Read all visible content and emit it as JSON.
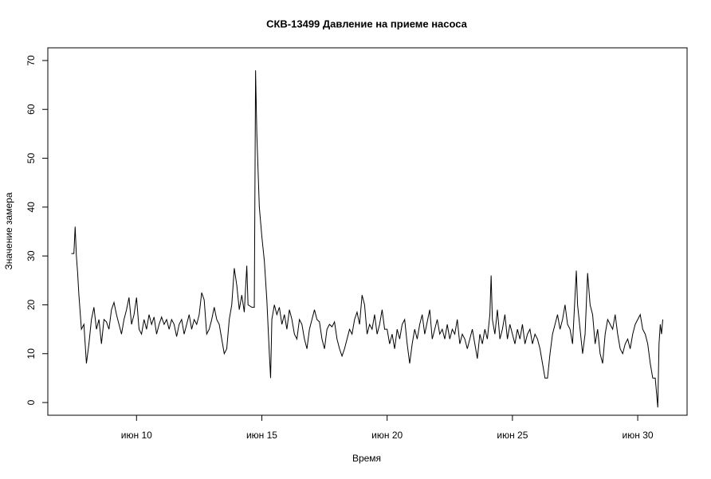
{
  "chart_data": {
    "type": "line",
    "title": "СКВ-13499 Давление на приеме насоса",
    "xlabel": "Время",
    "ylabel": "Значение замера",
    "color": "#000000",
    "xlim": [
      6.46,
      31.97
    ],
    "ylim": [
      -2.6,
      72.6
    ],
    "xticks": [
      {
        "value": 10,
        "label": "июн 10"
      },
      {
        "value": 15,
        "label": "июн 15"
      },
      {
        "value": 20,
        "label": "июн 20"
      },
      {
        "value": 25,
        "label": "июн 25"
      },
      {
        "value": 30,
        "label": "июн 30"
      }
    ],
    "yticks": [
      0,
      10,
      20,
      30,
      40,
      50,
      60,
      70
    ],
    "x": [
      7.4,
      7.5,
      7.55,
      7.6,
      7.65,
      7.7,
      7.8,
      7.9,
      8.0,
      8.1,
      8.2,
      8.3,
      8.4,
      8.5,
      8.6,
      8.7,
      8.8,
      8.9,
      9.0,
      9.1,
      9.2,
      9.3,
      9.4,
      9.5,
      9.6,
      9.7,
      9.8,
      9.9,
      10.0,
      10.1,
      10.2,
      10.3,
      10.4,
      10.5,
      10.6,
      10.7,
      10.8,
      10.9,
      11.0,
      11.1,
      11.2,
      11.3,
      11.4,
      11.5,
      11.6,
      11.7,
      11.8,
      11.9,
      12.0,
      12.1,
      12.2,
      12.3,
      12.4,
      12.5,
      12.6,
      12.7,
      12.8,
      12.9,
      13.0,
      13.1,
      13.2,
      13.3,
      13.4,
      13.5,
      13.6,
      13.7,
      13.8,
      13.9,
      14.0,
      14.1,
      14.2,
      14.3,
      14.4,
      14.45,
      14.6,
      14.7,
      14.75,
      14.8,
      14.9,
      15.0,
      15.1,
      15.2,
      15.3,
      15.35,
      15.4,
      15.5,
      15.6,
      15.7,
      15.8,
      15.9,
      16.0,
      16.1,
      16.2,
      16.3,
      16.4,
      16.5,
      16.6,
      16.7,
      16.8,
      16.9,
      17.0,
      17.1,
      17.2,
      17.3,
      17.4,
      17.5,
      17.6,
      17.7,
      17.8,
      17.9,
      18.0,
      18.1,
      18.2,
      18.3,
      18.4,
      18.5,
      18.6,
      18.7,
      18.8,
      18.9,
      19.0,
      19.1,
      19.2,
      19.3,
      19.4,
      19.5,
      19.6,
      19.7,
      19.8,
      19.9,
      20.0,
      20.1,
      20.2,
      20.3,
      20.4,
      20.5,
      20.6,
      20.7,
      20.8,
      20.9,
      21.0,
      21.1,
      21.2,
      21.3,
      21.4,
      21.5,
      21.6,
      21.7,
      21.8,
      21.9,
      22.0,
      22.1,
      22.2,
      22.3,
      22.4,
      22.5,
      22.6,
      22.7,
      22.8,
      22.9,
      23.0,
      23.1,
      23.2,
      23.3,
      23.4,
      23.5,
      23.6,
      23.7,
      23.8,
      23.9,
      24.0,
      24.1,
      24.15,
      24.2,
      24.3,
      24.4,
      24.5,
      24.6,
      24.7,
      24.8,
      24.9,
      25.0,
      25.1,
      25.2,
      25.3,
      25.4,
      25.5,
      25.6,
      25.7,
      25.8,
      25.9,
      26.0,
      26.1,
      26.2,
      26.3,
      26.4,
      26.5,
      26.6,
      26.7,
      26.8,
      26.9,
      27.0,
      27.1,
      27.2,
      27.3,
      27.4,
      27.5,
      27.55,
      27.6,
      27.7,
      27.8,
      27.9,
      28.0,
      28.1,
      28.2,
      28.3,
      28.4,
      28.5,
      28.6,
      28.7,
      28.8,
      28.9,
      29.0,
      29.1,
      29.2,
      29.3,
      29.4,
      29.5,
      29.6,
      29.7,
      29.8,
      29.9,
      30.0,
      30.1,
      30.2,
      30.3,
      30.4,
      30.5,
      30.6,
      30.7,
      30.8,
      30.85,
      30.9,
      30.95,
      31.0
    ],
    "values": [
      30.5,
      30.5,
      36,
      30,
      26.5,
      22,
      15,
      16,
      8,
      12,
      17,
      19.5,
      15,
      17,
      12,
      17,
      16.5,
      15,
      19,
      20.5,
      18,
      16,
      14,
      17,
      19,
      21.5,
      16,
      18,
      21.5,
      15,
      14,
      17,
      15,
      18,
      16,
      17.5,
      14,
      16,
      17.5,
      16,
      17,
      15,
      17,
      16,
      13.5,
      16,
      17,
      14,
      16,
      18,
      15,
      17,
      16,
      18,
      22.5,
      21,
      14,
      15,
      17,
      19.5,
      17,
      16,
      13,
      10,
      11,
      17,
      20,
      27.5,
      24,
      19,
      22,
      18.5,
      28,
      20,
      19.5,
      19.5,
      68,
      55,
      40,
      34,
      29,
      21,
      10,
      5,
      17,
      20,
      18,
      19.5,
      16,
      18,
      15,
      19,
      17,
      14,
      13,
      17,
      16,
      13,
      11,
      15,
      17,
      19,
      17,
      16.5,
      13,
      11,
      15,
      16,
      15.5,
      16.5,
      13,
      11,
      9.5,
      11,
      13,
      15,
      14,
      17,
      18.5,
      16,
      22,
      20,
      14,
      16,
      15,
      18,
      14,
      16,
      19,
      15,
      15,
      12,
      14,
      11,
      15,
      13,
      16,
      17,
      12,
      8,
      12,
      15,
      13,
      16,
      18,
      14,
      16.5,
      19,
      13,
      15,
      17,
      14,
      15,
      13,
      16,
      13,
      15,
      14,
      17,
      12,
      14,
      13,
      11,
      13,
      15,
      12,
      9,
      14,
      12,
      15,
      13,
      18,
      26,
      17,
      14,
      19,
      13,
      15,
      18,
      13,
      16,
      14,
      12,
      15,
      13,
      16,
      12,
      14,
      15,
      12,
      14,
      13,
      11,
      8,
      5,
      5,
      10,
      14,
      16,
      18,
      15,
      17,
      20,
      16,
      15,
      12,
      22,
      27,
      20,
      15,
      10,
      14,
      26.5,
      20,
      18,
      12,
      15,
      10,
      8,
      14,
      17,
      16,
      15,
      18,
      14,
      11,
      10,
      12,
      13,
      11,
      14,
      16,
      17,
      18,
      15,
      14,
      12,
      8,
      5,
      5,
      -1,
      12,
      16,
      14,
      17
    ]
  }
}
